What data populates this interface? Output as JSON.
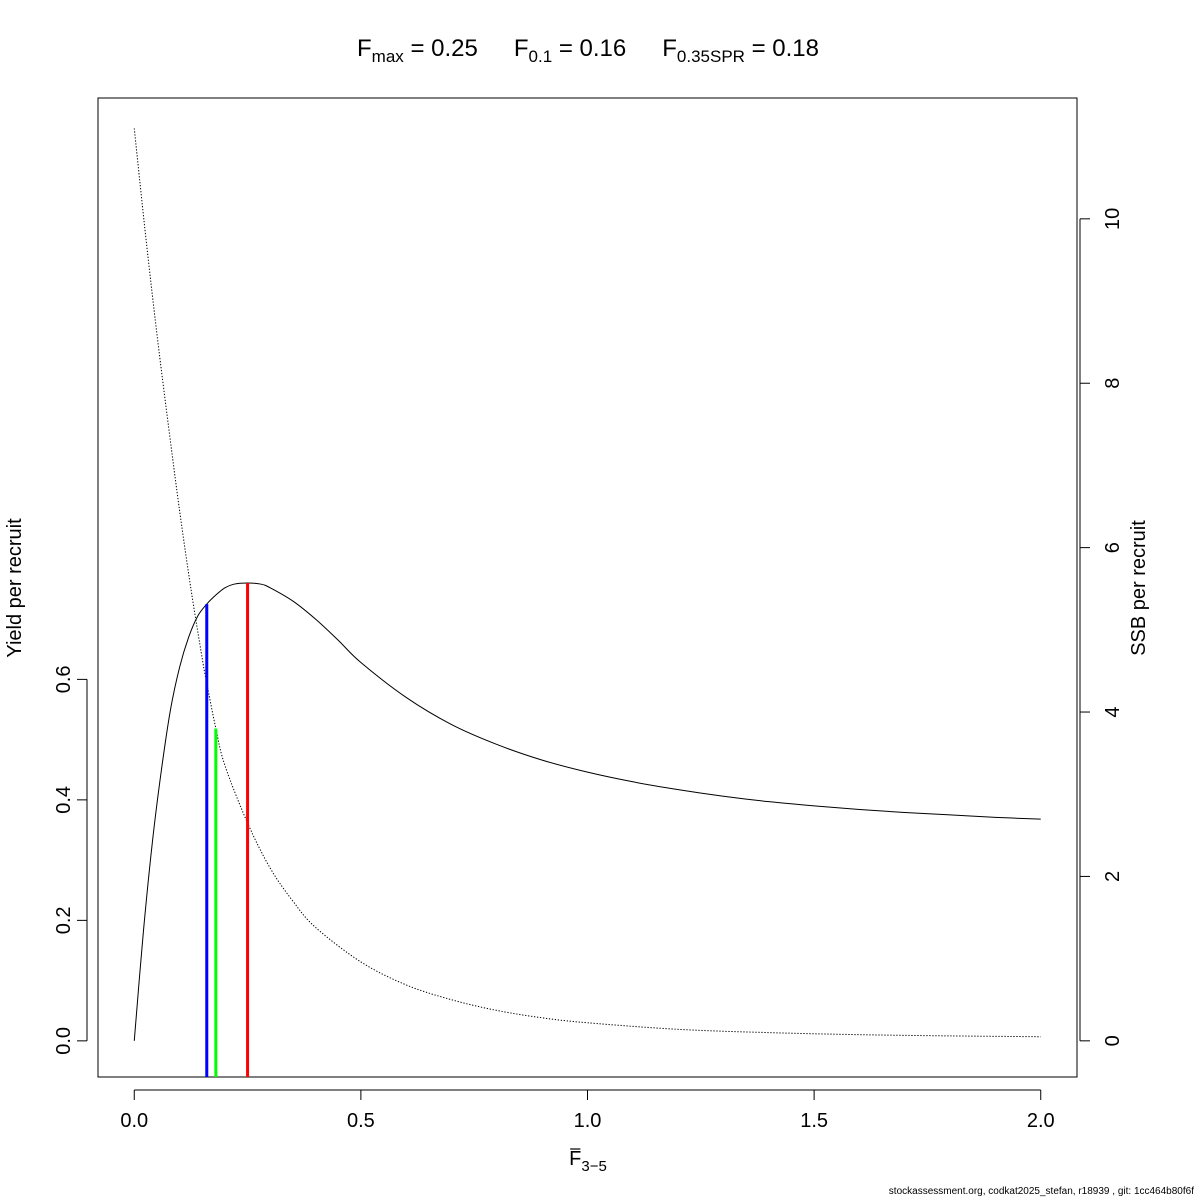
{
  "chart_data": {
    "type": "line",
    "title_parts": [
      {
        "symbol": "F",
        "subscript": "max",
        "relation": " = ",
        "value": "0.25"
      },
      {
        "symbol": "F",
        "subscript": "0.1",
        "relation": " = ",
        "value": "0.16"
      },
      {
        "symbol": "F",
        "subscript": "0.35SPR",
        "relation": " = ",
        "value": "0.18"
      }
    ],
    "xlabel": {
      "symbol": "F",
      "subscript": "3−5"
    },
    "ylabel": "Yield per recruit",
    "y2label": "SSB per recruit",
    "xlim": [
      -0.08,
      2.08
    ],
    "ylim": [
      -0.06,
      1.565
    ],
    "y2lim": [
      -0.44,
      11.47
    ],
    "xticks": [
      0.0,
      0.5,
      1.0,
      1.5,
      2.0
    ],
    "xtick_labels": [
      "0.0",
      "0.5",
      "1.0",
      "1.5",
      "2.0"
    ],
    "yticks": [
      0.0,
      0.2,
      0.4,
      0.6
    ],
    "ytick_labels": [
      "0.0",
      "0.2",
      "0.4",
      "0.6"
    ],
    "y2ticks": [
      0,
      2,
      4,
      6,
      8,
      10
    ],
    "y2tick_labels": [
      "0",
      "2",
      "4",
      "6",
      "8",
      "10"
    ],
    "grid": false,
    "series": [
      {
        "axis": "left",
        "style": "solid",
        "color": "#000000",
        "x": [
          0,
          0.02,
          0.04,
          0.06,
          0.08,
          0.1,
          0.12,
          0.14,
          0.16,
          0.18,
          0.2,
          0.22,
          0.25,
          0.28,
          0.3,
          0.35,
          0.4,
          0.45,
          0.5,
          0.6,
          0.7,
          0.8,
          0.9,
          1.0,
          1.1,
          1.2,
          1.3,
          1.4,
          1.5,
          1.6,
          1.7,
          1.8,
          1.9,
          2.0
        ],
        "y": [
          0,
          0.18,
          0.33,
          0.45,
          0.55,
          0.62,
          0.67,
          0.705,
          0.725,
          0.74,
          0.752,
          0.758,
          0.76,
          0.758,
          0.752,
          0.73,
          0.7,
          0.665,
          0.628,
          0.57,
          0.525,
          0.492,
          0.466,
          0.446,
          0.43,
          0.417,
          0.406,
          0.397,
          0.39,
          0.384,
          0.379,
          0.375,
          0.371,
          0.368
        ]
      },
      {
        "axis": "right",
        "style": "dotted",
        "color": "#000000",
        "x": [
          0,
          0.025,
          0.05,
          0.075,
          0.1,
          0.125,
          0.15,
          0.16,
          0.18,
          0.2,
          0.25,
          0.3,
          0.35,
          0.4,
          0.5,
          0.6,
          0.7,
          0.8,
          0.9,
          1.0,
          1.2,
          1.4,
          1.6,
          1.8,
          2.0
        ],
        "y": [
          11.1,
          9.8,
          8.6,
          7.5,
          6.45,
          5.5,
          4.65,
          4.35,
          3.8,
          3.35,
          2.65,
          2.1,
          1.7,
          1.38,
          0.96,
          0.68,
          0.5,
          0.37,
          0.28,
          0.22,
          0.14,
          0.1,
          0.075,
          0.06,
          0.05
        ]
      }
    ],
    "reference_lines": [
      {
        "color": "#0000ff",
        "x": 0.16,
        "y_top": 0.725,
        "axis": "left"
      },
      {
        "color": "#00ff00",
        "x": 0.18,
        "y_top": 3.8,
        "axis": "right"
      },
      {
        "color": "#ff0000",
        "x": 0.25,
        "y_top": 0.76,
        "axis": "left"
      }
    ]
  },
  "footer": "stockassessment.org, codkat2025_stefan, r18939 , git: 1cc464b80f6f"
}
